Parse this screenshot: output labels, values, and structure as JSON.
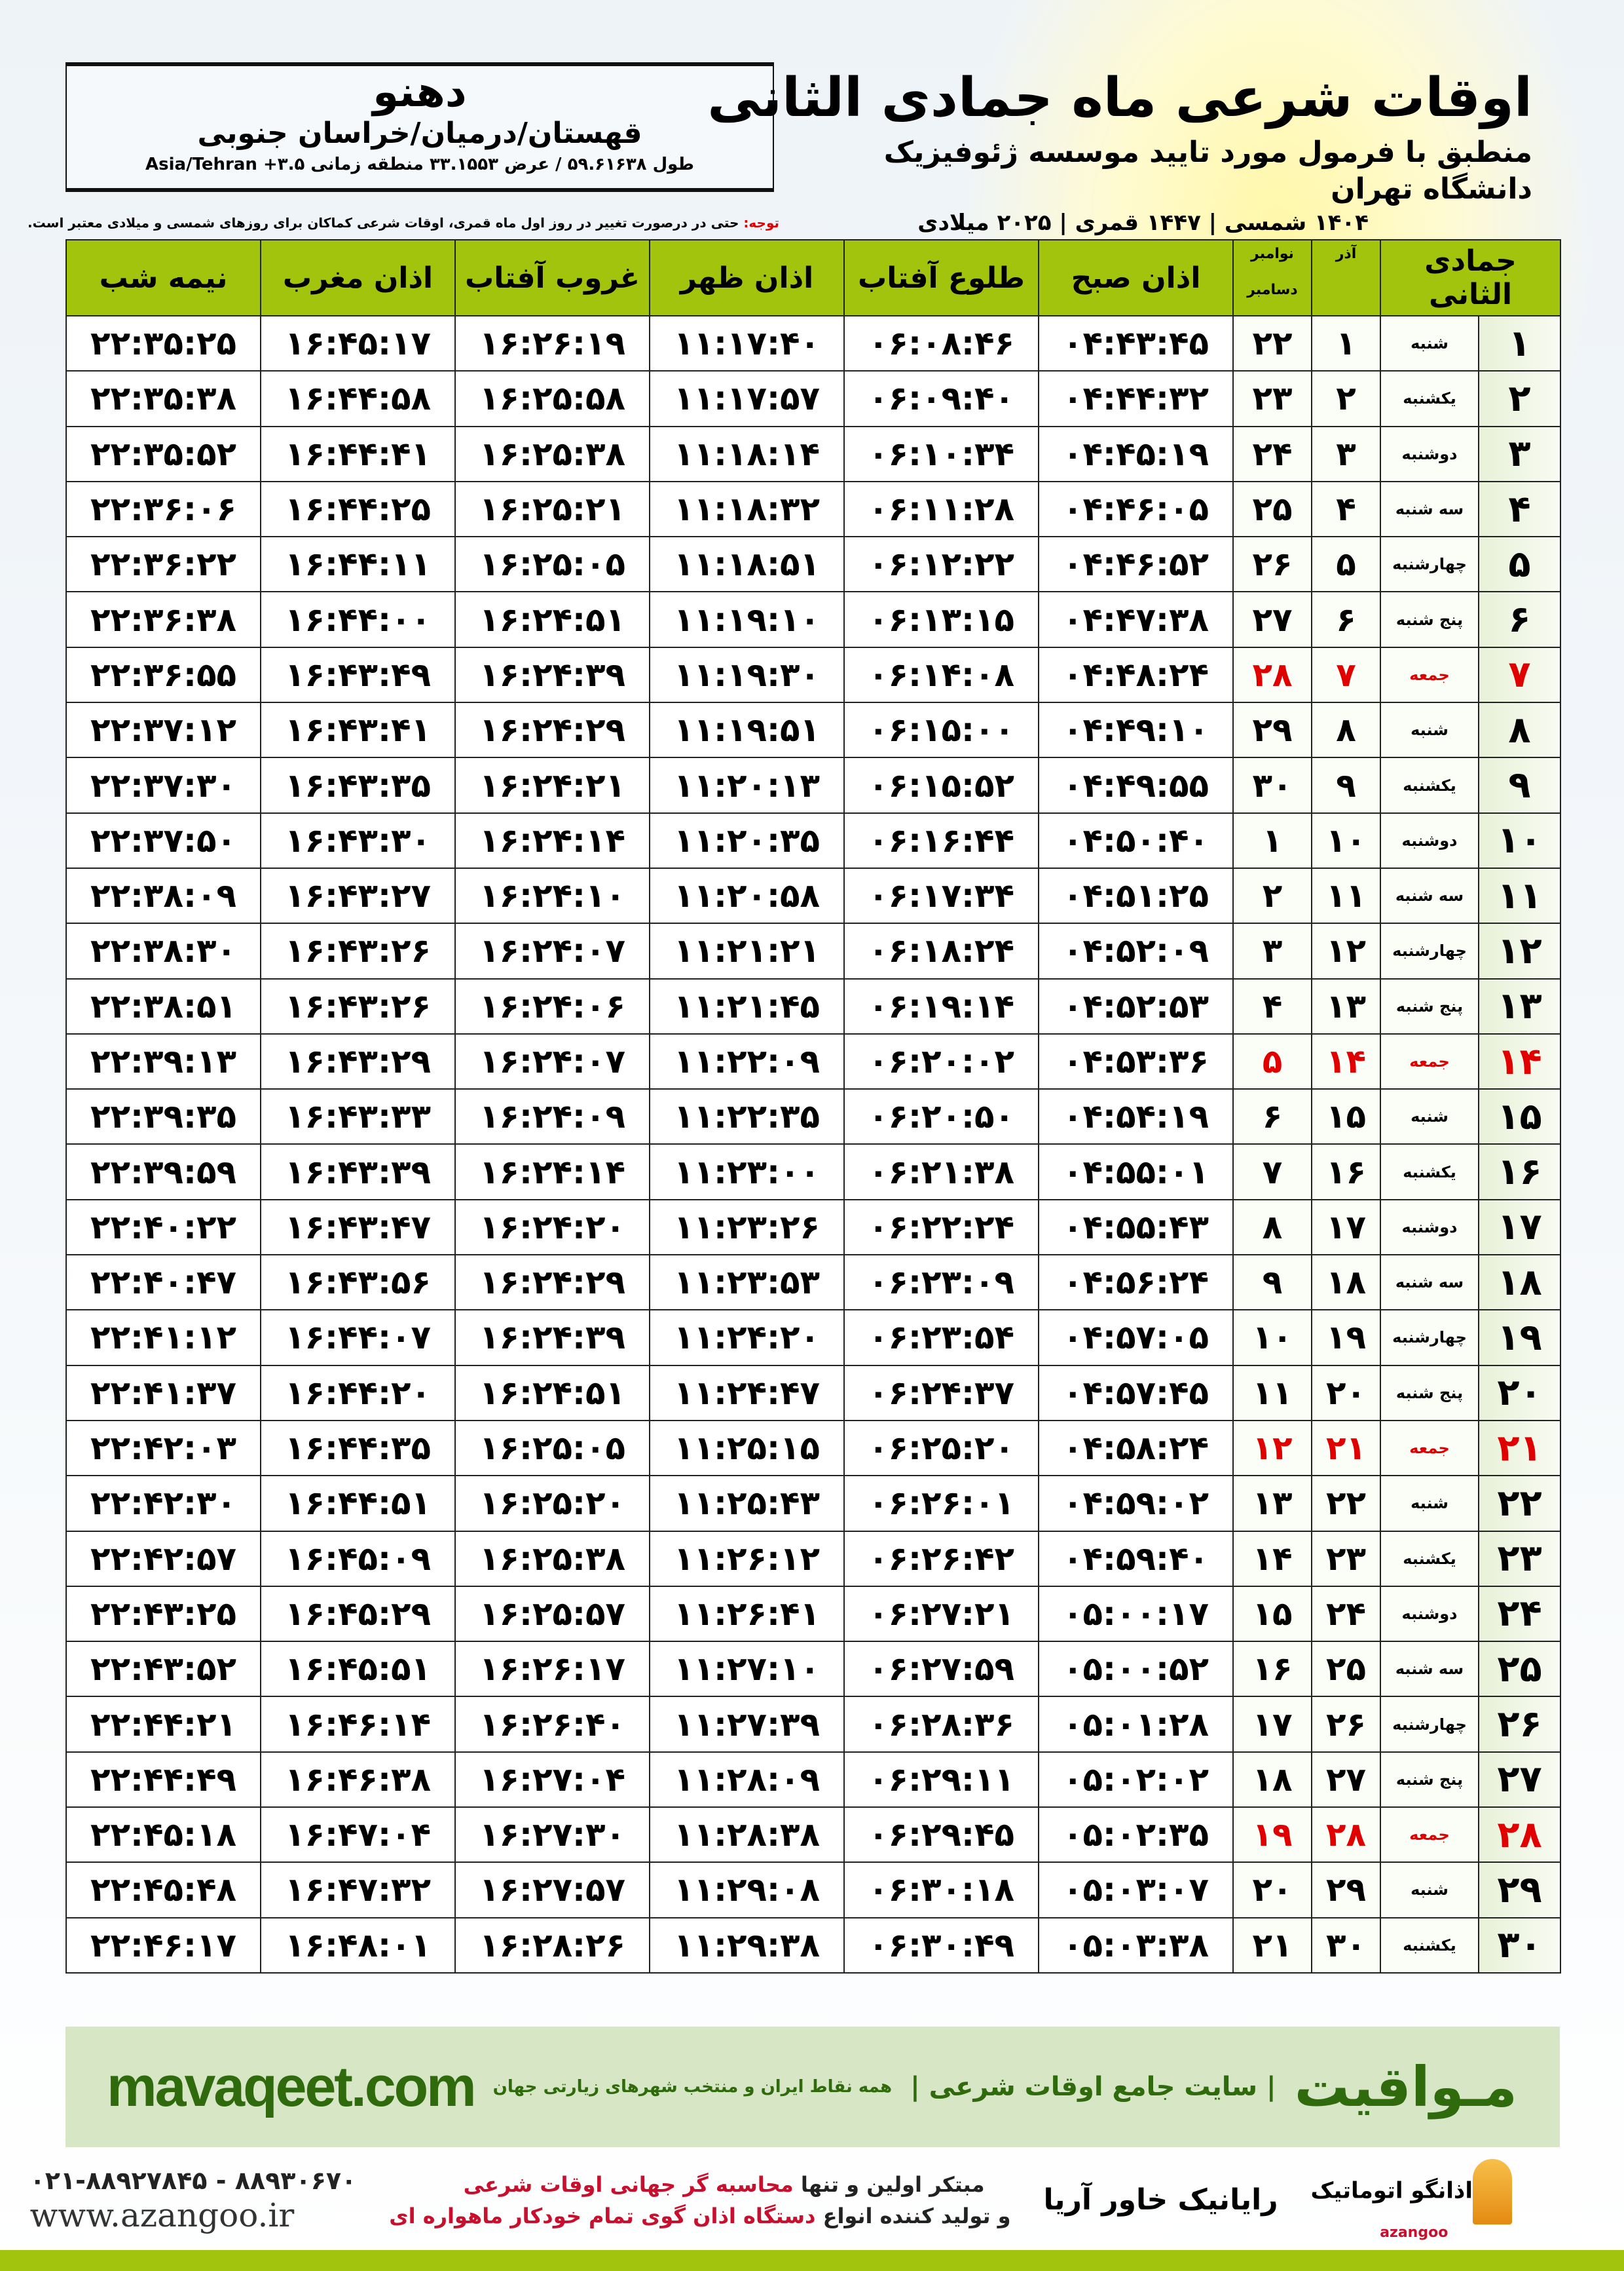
{
  "location": {
    "city": "دهنو",
    "region": "قهستان/درمیان/خراسان جنوبی",
    "coords": "طول ۵۹.۶۱۶۳۸ / عرض ۳۳.۱۵۵۳ منطقه زمانی ۳.۵+ Asia/Tehran"
  },
  "header": {
    "title": "اوقات شرعی ماه جمادی الثانی",
    "subtitle": "منطبق با فرمول مورد تایید موسسه ژئوفیزیک دانشگاه تهران",
    "years": "۱۴۰۴ شمسی | ۱۴۴۷ قمری | ۲۰۲۵ میلادی",
    "note_label": "توجه:",
    "note": " حتی در درصورت تغییر در روز اول ماه قمری، اوقات شرعی کماکان برای روزهای شمسی و میلادی معتبر است."
  },
  "table": {
    "columns": {
      "hijri": "جمادی الثانی",
      "azar": "آذر",
      "nov": "نوامبر",
      "dec": "دسامبر",
      "fajr": "اذان صبح",
      "sunrise": "طلوع آفتاب",
      "dhuhr": "اذان ظهر",
      "sunset": "غروب آفتاب",
      "maghrib": "اذان مغرب",
      "midnight": "نیمه شب"
    },
    "friday_color": "#e00000",
    "header_color": "#a3c40c",
    "rows": [
      [
        "۱",
        "شنبه",
        "۱",
        "۲۲",
        "۰۴:۴۳:۴۵",
        "۰۶:۰۸:۴۶",
        "۱۱:۱۷:۴۰",
        "۱۶:۲۶:۱۹",
        "۱۶:۴۵:۱۷",
        "۲۲:۳۵:۲۵"
      ],
      [
        "۲",
        "یکشنبه",
        "۲",
        "۲۳",
        "۰۴:۴۴:۳۲",
        "۰۶:۰۹:۴۰",
        "۱۱:۱۷:۵۷",
        "۱۶:۲۵:۵۸",
        "۱۶:۴۴:۵۸",
        "۲۲:۳۵:۳۸"
      ],
      [
        "۳",
        "دوشنبه",
        "۳",
        "۲۴",
        "۰۴:۴۵:۱۹",
        "۰۶:۱۰:۳۴",
        "۱۱:۱۸:۱۴",
        "۱۶:۲۵:۳۸",
        "۱۶:۴۴:۴۱",
        "۲۲:۳۵:۵۲"
      ],
      [
        "۴",
        "سه شنبه",
        "۴",
        "۲۵",
        "۰۴:۴۶:۰۵",
        "۰۶:۱۱:۲۸",
        "۱۱:۱۸:۳۲",
        "۱۶:۲۵:۲۱",
        "۱۶:۴۴:۲۵",
        "۲۲:۳۶:۰۶"
      ],
      [
        "۵",
        "چهارشنبه",
        "۵",
        "۲۶",
        "۰۴:۴۶:۵۲",
        "۰۶:۱۲:۲۲",
        "۱۱:۱۸:۵۱",
        "۱۶:۲۵:۰۵",
        "۱۶:۴۴:۱۱",
        "۲۲:۳۶:۲۲"
      ],
      [
        "۶",
        "پنج شنبه",
        "۶",
        "۲۷",
        "۰۴:۴۷:۳۸",
        "۰۶:۱۳:۱۵",
        "۱۱:۱۹:۱۰",
        "۱۶:۲۴:۵۱",
        "۱۶:۴۴:۰۰",
        "۲۲:۳۶:۳۸"
      ],
      [
        "۷",
        "جمعه",
        "۷",
        "۲۸",
        "۰۴:۴۸:۲۴",
        "۰۶:۱۴:۰۸",
        "۱۱:۱۹:۳۰",
        "۱۶:۲۴:۳۹",
        "۱۶:۴۳:۴۹",
        "۲۲:۳۶:۵۵"
      ],
      [
        "۸",
        "شنبه",
        "۸",
        "۲۹",
        "۰۴:۴۹:۱۰",
        "۰۶:۱۵:۰۰",
        "۱۱:۱۹:۵۱",
        "۱۶:۲۴:۲۹",
        "۱۶:۴۳:۴۱",
        "۲۲:۳۷:۱۲"
      ],
      [
        "۹",
        "یکشنبه",
        "۹",
        "۳۰",
        "۰۴:۴۹:۵۵",
        "۰۶:۱۵:۵۲",
        "۱۱:۲۰:۱۳",
        "۱۶:۲۴:۲۱",
        "۱۶:۴۳:۳۵",
        "۲۲:۳۷:۳۰"
      ],
      [
        "۱۰",
        "دوشنبه",
        "۱۰",
        "۱",
        "۰۴:۵۰:۴۰",
        "۰۶:۱۶:۴۴",
        "۱۱:۲۰:۳۵",
        "۱۶:۲۴:۱۴",
        "۱۶:۴۳:۳۰",
        "۲۲:۳۷:۵۰"
      ],
      [
        "۱۱",
        "سه شنبه",
        "۱۱",
        "۲",
        "۰۴:۵۱:۲۵",
        "۰۶:۱۷:۳۴",
        "۱۱:۲۰:۵۸",
        "۱۶:۲۴:۱۰",
        "۱۶:۴۳:۲۷",
        "۲۲:۳۸:۰۹"
      ],
      [
        "۱۲",
        "چهارشنبه",
        "۱۲",
        "۳",
        "۰۴:۵۲:۰۹",
        "۰۶:۱۸:۲۴",
        "۱۱:۲۱:۲۱",
        "۱۶:۲۴:۰۷",
        "۱۶:۴۳:۲۶",
        "۲۲:۳۸:۳۰"
      ],
      [
        "۱۳",
        "پنج شنبه",
        "۱۳",
        "۴",
        "۰۴:۵۲:۵۳",
        "۰۶:۱۹:۱۴",
        "۱۱:۲۱:۴۵",
        "۱۶:۲۴:۰۶",
        "۱۶:۴۳:۲۶",
        "۲۲:۳۸:۵۱"
      ],
      [
        "۱۴",
        "جمعه",
        "۱۴",
        "۵",
        "۰۴:۵۳:۳۶",
        "۰۶:۲۰:۰۲",
        "۱۱:۲۲:۰۹",
        "۱۶:۲۴:۰۷",
        "۱۶:۴۳:۲۹",
        "۲۲:۳۹:۱۳"
      ],
      [
        "۱۵",
        "شنبه",
        "۱۵",
        "۶",
        "۰۴:۵۴:۱۹",
        "۰۶:۲۰:۵۰",
        "۱۱:۲۲:۳۵",
        "۱۶:۲۴:۰۹",
        "۱۶:۴۳:۳۳",
        "۲۲:۳۹:۳۵"
      ],
      [
        "۱۶",
        "یکشنبه",
        "۱۶",
        "۷",
        "۰۴:۵۵:۰۱",
        "۰۶:۲۱:۳۸",
        "۱۱:۲۳:۰۰",
        "۱۶:۲۴:۱۴",
        "۱۶:۴۳:۳۹",
        "۲۲:۳۹:۵۹"
      ],
      [
        "۱۷",
        "دوشنبه",
        "۱۷",
        "۸",
        "۰۴:۵۵:۴۳",
        "۰۶:۲۲:۲۴",
        "۱۱:۲۳:۲۶",
        "۱۶:۲۴:۲۰",
        "۱۶:۴۳:۴۷",
        "۲۲:۴۰:۲۲"
      ],
      [
        "۱۸",
        "سه شنبه",
        "۱۸",
        "۹",
        "۰۴:۵۶:۲۴",
        "۰۶:۲۳:۰۹",
        "۱۱:۲۳:۵۳",
        "۱۶:۲۴:۲۹",
        "۱۶:۴۳:۵۶",
        "۲۲:۴۰:۴۷"
      ],
      [
        "۱۹",
        "چهارشنبه",
        "۱۹",
        "۱۰",
        "۰۴:۵۷:۰۵",
        "۰۶:۲۳:۵۴",
        "۱۱:۲۴:۲۰",
        "۱۶:۲۴:۳۹",
        "۱۶:۴۴:۰۷",
        "۲۲:۴۱:۱۲"
      ],
      [
        "۲۰",
        "پنج شنبه",
        "۲۰",
        "۱۱",
        "۰۴:۵۷:۴۵",
        "۰۶:۲۴:۳۷",
        "۱۱:۲۴:۴۷",
        "۱۶:۲۴:۵۱",
        "۱۶:۴۴:۲۰",
        "۲۲:۴۱:۳۷"
      ],
      [
        "۲۱",
        "جمعه",
        "۲۱",
        "۱۲",
        "۰۴:۵۸:۲۴",
        "۰۶:۲۵:۲۰",
        "۱۱:۲۵:۱۵",
        "۱۶:۲۵:۰۵",
        "۱۶:۴۴:۳۵",
        "۲۲:۴۲:۰۳"
      ],
      [
        "۲۲",
        "شنبه",
        "۲۲",
        "۱۳",
        "۰۴:۵۹:۰۲",
        "۰۶:۲۶:۰۱",
        "۱۱:۲۵:۴۳",
        "۱۶:۲۵:۲۰",
        "۱۶:۴۴:۵۱",
        "۲۲:۴۲:۳۰"
      ],
      [
        "۲۳",
        "یکشنبه",
        "۲۳",
        "۱۴",
        "۰۴:۵۹:۴۰",
        "۰۶:۲۶:۴۲",
        "۱۱:۲۶:۱۲",
        "۱۶:۲۵:۳۸",
        "۱۶:۴۵:۰۹",
        "۲۲:۴۲:۵۷"
      ],
      [
        "۲۴",
        "دوشنبه",
        "۲۴",
        "۱۵",
        "۰۵:۰۰:۱۷",
        "۰۶:۲۷:۲۱",
        "۱۱:۲۶:۴۱",
        "۱۶:۲۵:۵۷",
        "۱۶:۴۵:۲۹",
        "۲۲:۴۳:۲۵"
      ],
      [
        "۲۵",
        "سه شنبه",
        "۲۵",
        "۱۶",
        "۰۵:۰۰:۵۲",
        "۰۶:۲۷:۵۹",
        "۱۱:۲۷:۱۰",
        "۱۶:۲۶:۱۷",
        "۱۶:۴۵:۵۱",
        "۲۲:۴۳:۵۲"
      ],
      [
        "۲۶",
        "چهارشنبه",
        "۲۶",
        "۱۷",
        "۰۵:۰۱:۲۸",
        "۰۶:۲۸:۳۶",
        "۱۱:۲۷:۳۹",
        "۱۶:۲۶:۴۰",
        "۱۶:۴۶:۱۴",
        "۲۲:۴۴:۲۱"
      ],
      [
        "۲۷",
        "پنج شنبه",
        "۲۷",
        "۱۸",
        "۰۵:۰۲:۰۲",
        "۰۶:۲۹:۱۱",
        "۱۱:۲۸:۰۹",
        "۱۶:۲۷:۰۴",
        "۱۶:۴۶:۳۸",
        "۲۲:۴۴:۴۹"
      ],
      [
        "۲۸",
        "جمعه",
        "۲۸",
        "۱۹",
        "۰۵:۰۲:۳۵",
        "۰۶:۲۹:۴۵",
        "۱۱:۲۸:۳۸",
        "۱۶:۲۷:۳۰",
        "۱۶:۴۷:۰۴",
        "۲۲:۴۵:۱۸"
      ],
      [
        "۲۹",
        "شنبه",
        "۲۹",
        "۲۰",
        "۰۵:۰۳:۰۷",
        "۰۶:۳۰:۱۸",
        "۱۱:۲۹:۰۸",
        "۱۶:۲۷:۵۷",
        "۱۶:۴۷:۳۲",
        "۲۲:۴۵:۴۸"
      ],
      [
        "۳۰",
        "یکشنبه",
        "۳۰",
        "۲۱",
        "۰۵:۰۳:۳۸",
        "۰۶:۳۰:۴۹",
        "۱۱:۲۹:۳۸",
        "۱۶:۲۸:۲۶",
        "۱۶:۴۸:۰۱",
        "۲۲:۴۶:۱۷"
      ]
    ]
  },
  "footer": {
    "site": "mavaqeet.com",
    "brand": "مـواقیت",
    "brand_sub": "| سایت جامع اوقات شرعی |",
    "brand_sub2": "همه نقاط ایران و منتخب شهرهای زیارتی جهان",
    "phones": "۰۲۱-۸۸۹۲۷۸۴۵ - ۸۸۹۳۰۶۷۰",
    "web": "www.azangoo.ir",
    "slogan1_a": "مبتکر اولین و تنها ",
    "slogan1_b": "محاسبه گر جهانی اوقات شرعی",
    "slogan2_a": "و تولید کننده انواع ",
    "slogan2_b": "دستگاه اذان گوی تمام خودکار ماهواره ای",
    "logo1": "رایانیک خاور آریا",
    "logo2": "اذانگو اتوماتیک",
    "logo2_sub": "azangoo"
  }
}
